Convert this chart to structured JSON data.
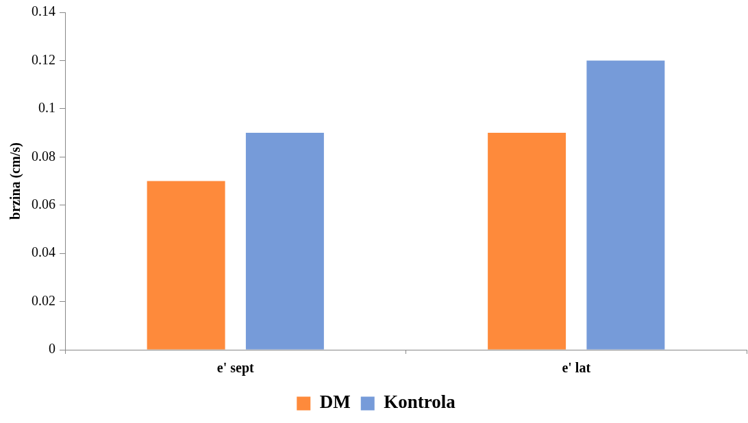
{
  "chart_data": {
    "type": "bar",
    "ylabel": "brzina (cm/s)",
    "categories": [
      "e' sept",
      "e' lat"
    ],
    "series": [
      {
        "name": "DM",
        "color": "#fe8a3b",
        "values": [
          0.07,
          0.09
        ]
      },
      {
        "name": "Kontrola",
        "color": "#769bd9",
        "values": [
          0.09,
          0.12
        ]
      }
    ],
    "ylim": [
      0,
      0.14
    ],
    "yticks": [
      0,
      0.02,
      0.04,
      0.06,
      0.08,
      0.1,
      0.12,
      0.14
    ],
    "grid": false,
    "legend": "bottom"
  }
}
